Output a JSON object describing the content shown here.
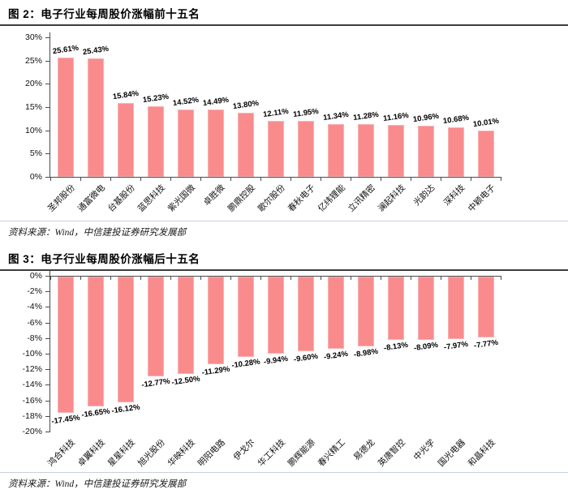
{
  "figure2": {
    "title": "图 2：电子行业每周股价涨幅前十五名",
    "source": "资料来源：Wind，中信建投证券研究发展部"
  },
  "figure3": {
    "title": "图 3：电子行业每周股价涨幅后十五名",
    "source": "资料来源：Wind，中信建投证券研究发展部"
  },
  "colors": {
    "bar_fill": "#F98B8D",
    "bar_border": "#FBB1B2",
    "axis": "#4a4a4a",
    "title_rule": "#3d3d3d",
    "separator": "#c9cfd9"
  },
  "chart_data": [
    {
      "type": "bar",
      "title": "电子行业每周股价涨幅前十五名",
      "categories": [
        "圣邦股份",
        "通富微电",
        "台基股份",
        "蓝思科技",
        "紫光国微",
        "卓胜微",
        "鹏鼎控股",
        "歌尔股份",
        "春秋电子",
        "亿纬锂能",
        "立讯精密",
        "澜起科技",
        "光韵达",
        "深科技",
        "中颖电子"
      ],
      "values": [
        25.61,
        25.43,
        15.84,
        15.23,
        14.52,
        14.49,
        13.8,
        12.11,
        11.95,
        11.34,
        11.28,
        11.16,
        10.96,
        10.68,
        10.01
      ],
      "data_labels": [
        "25.61%",
        "25.43%",
        "15.84%",
        "15.23%",
        "14.52%",
        "14.49%",
        "13.80%",
        "12.11%",
        "11.95%",
        "11.34%",
        "11.28%",
        "11.16%",
        "10.96%",
        "10.68%",
        "10.01%"
      ],
      "xlabel": "",
      "ylabel": "",
      "ylim": [
        0,
        30
      ],
      "yticks": [
        0,
        5,
        10,
        15,
        20,
        25,
        30
      ],
      "ytick_labels": [
        "0%",
        "5%",
        "10%",
        "15%",
        "20%",
        "25%",
        "30%"
      ],
      "grid": false,
      "legend": "none"
    },
    {
      "type": "bar",
      "title": "电子行业每周股价涨幅后十五名",
      "categories": [
        "鸿合科技",
        "卓翼科技",
        "星星科技",
        "旭光股份",
        "华映科技",
        "明阳电路",
        "伊戈尔",
        "华工科技",
        "鹏辉能源",
        "春兴精工",
        "易德龙",
        "英唐智控",
        "中光学",
        "国光电器",
        "和晶科技"
      ],
      "values": [
        -17.45,
        -16.65,
        -16.12,
        -12.77,
        -12.5,
        -11.29,
        -10.28,
        -9.94,
        -9.6,
        -9.24,
        -8.98,
        -8.13,
        -8.09,
        -7.97,
        -7.77
      ],
      "data_labels": [
        "-17.45%",
        "-16.65%",
        "-16.12%",
        "-12.77%",
        "-12.50%",
        "-11.29%",
        "-10.28%",
        "-9.94%",
        "-9.60%",
        "-9.24%",
        "-8.98%",
        "-8.13%",
        "-8.09%",
        "-7.97%",
        "-7.77%"
      ],
      "xlabel": "",
      "ylabel": "",
      "ylim": [
        -20,
        0
      ],
      "yticks": [
        0,
        -2,
        -4,
        -6,
        -8,
        -10,
        -12,
        -14,
        -16,
        -18,
        -20
      ],
      "ytick_labels": [
        "0%",
        "-2%",
        "-4%",
        "-6%",
        "-8%",
        "-10%",
        "-12%",
        "-14%",
        "-16%",
        "-18%",
        "-20%"
      ],
      "grid": false,
      "legend": "none"
    }
  ]
}
